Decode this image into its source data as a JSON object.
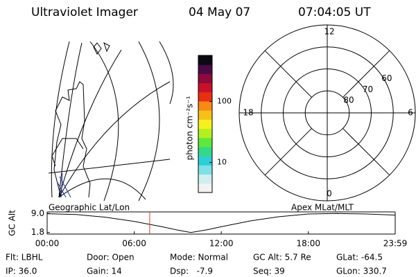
{
  "header": {
    "title": "Ultraviolet Imager",
    "date": "04 May 07",
    "time": "07:04:05 UT"
  },
  "map": {
    "label": "Geographic Lat/Lon"
  },
  "chart_data": [
    {
      "type": "colorbar",
      "label": "photon cm⁻²s⁻¹",
      "log": true,
      "ylim": [
        3.2,
        575
      ],
      "yticks": [
        10,
        100
      ],
      "colors": [
        "#f2f2f2",
        "#cfeef0",
        "#7fe0e6",
        "#2ccfd8",
        "#33d98a",
        "#5ee83a",
        "#b4f01e",
        "#f4f21c",
        "#f6c01a",
        "#f88a14",
        "#e83010",
        "#c8102a",
        "#8c0a3c",
        "#4a0a46",
        "#0a0a14"
      ]
    },
    {
      "type": "polar",
      "label": "Apex MLat/MLT",
      "rlim": [
        90,
        50
      ],
      "rticks": [
        80,
        70,
        60
      ],
      "angle_ticks": [
        12,
        18,
        6,
        0
      ]
    },
    {
      "type": "line",
      "ylabel": "GC Alt",
      "xlim": [
        0,
        23.983
      ],
      "ylim": [
        1.2,
        9.6
      ],
      "yticks": [
        {
          "value": 9,
          "label": "9.0"
        },
        1.8
      ],
      "xticks": [
        {
          "value": 0,
          "label": "00:00"
        },
        {
          "value": 6,
          "label": "06:00"
        },
        {
          "value": 12,
          "label": "12:00"
        },
        {
          "value": 18,
          "label": "18:00"
        },
        {
          "value": 23.983,
          "label": "23:59"
        }
      ],
      "x": [
        0,
        2,
        4,
        6,
        8,
        9,
        9.9,
        11,
        12,
        14,
        16,
        18,
        20,
        22,
        23.983
      ],
      "series": [
        {
          "color": "#000000",
          "values": [
            8.9,
            8.6,
            7.6,
            6.0,
            3.9,
            2.7,
            1.8,
            2.8,
            4.0,
            6.2,
            7.8,
            8.8,
            9.0,
            8.8,
            8.4
          ]
        }
      ],
      "marker_x": 7.068,
      "marker_color": "#e03030"
    }
  ],
  "footer": {
    "rows": [
      [
        "Flt: LBHL",
        "Door: Open",
        "Mode: Normal",
        "GC Alt: 5.7 Re",
        "GLat: -64.5"
      ],
      [
        "IP: 36.0",
        "Gain: 14",
        "Dsp:   -7.9",
        "Seq: 39",
        "GLon: 330.7"
      ]
    ]
  }
}
